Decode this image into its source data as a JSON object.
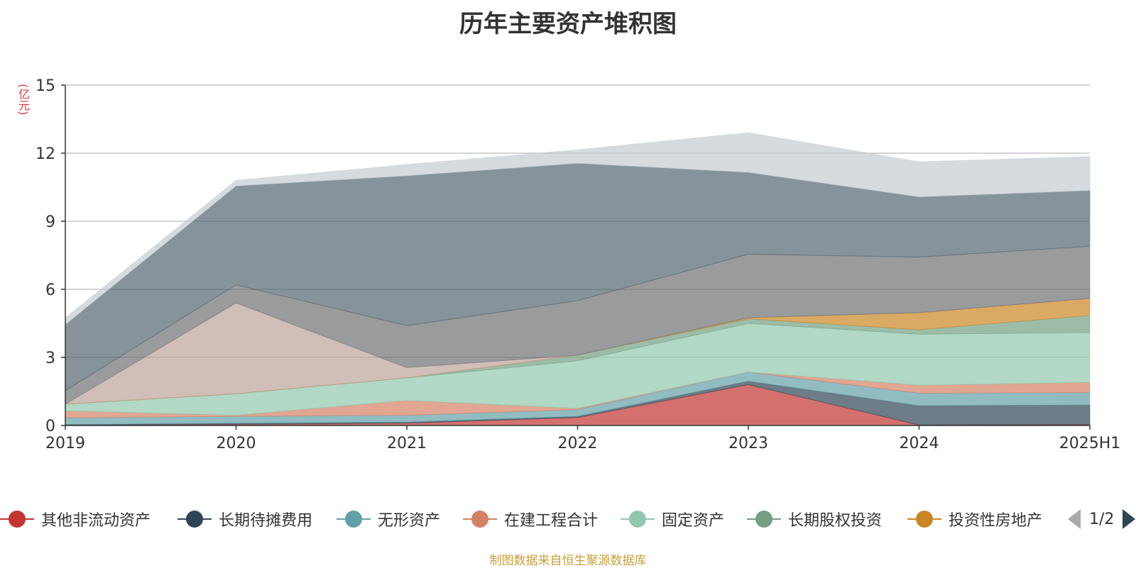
{
  "chart_data": {
    "type": "area",
    "title": "历年主要资产堆积图",
    "unit_label": "(亿元)",
    "categories": [
      "2019",
      "2020",
      "2021",
      "2022",
      "2023",
      "2024",
      "2025H1"
    ],
    "ylim": [
      0,
      15
    ],
    "yticks": [
      0,
      3,
      6,
      9,
      12,
      15
    ],
    "grid": true,
    "stacked": true,
    "legend_position": "bottom",
    "series": [
      {
        "name": "其他非流动资产",
        "color": "#c23531",
        "values": [
          0.02,
          0.05,
          0.1,
          0.35,
          1.8,
          0.02,
          0.05
        ]
      },
      {
        "name": "长期待摊费用",
        "color": "#2f4554",
        "values": [
          0.02,
          0.05,
          0.05,
          0.05,
          0.15,
          0.85,
          0.85
        ]
      },
      {
        "name": "无形资产",
        "color": "#61a0a8",
        "values": [
          0.3,
          0.3,
          0.3,
          0.3,
          0.4,
          0.55,
          0.55
        ]
      },
      {
        "name": "在建工程合计",
        "color": "#d48265",
        "values": [
          0.3,
          0.05,
          0.65,
          0.05,
          0.0,
          0.35,
          0.45
        ]
      },
      {
        "name": "固定资产",
        "color": "#91c7ae",
        "values": [
          0.3,
          0.95,
          1.0,
          2.1,
          2.15,
          2.25,
          2.2
        ]
      },
      {
        "name": "长期股权投资",
        "color": "#749f83",
        "values": [
          0.0,
          0.0,
          0.0,
          0.25,
          0.2,
          0.2,
          0.75
        ]
      },
      {
        "name": "投资性房地产",
        "color": "#ca8622",
        "values": [
          0.0,
          0.0,
          0.0,
          0.0,
          0.05,
          0.75,
          0.75
        ]
      },
      {
        "name": "",
        "color": "#bda29a",
        "values": [
          0.0,
          4.0,
          0.45,
          0.0,
          0.0,
          0.0,
          0.0
        ]
      },
      {
        "name": "",
        "color": "#6e7074",
        "values": [
          0.6,
          0.8,
          1.85,
          2.4,
          2.8,
          2.45,
          2.3
        ]
      },
      {
        "name": "",
        "color": "#546570",
        "values": [
          2.9,
          4.35,
          6.6,
          6.05,
          3.6,
          2.65,
          2.45
        ]
      },
      {
        "name": "",
        "color": "#c4ccd3",
        "values": [
          0.3,
          0.25,
          0.5,
          0.6,
          1.75,
          1.55,
          1.5
        ]
      }
    ],
    "legend_visible": [
      {
        "name": "其他非流动资产",
        "color": "#c23531"
      },
      {
        "name": "长期待摊费用",
        "color": "#2f4554"
      },
      {
        "name": "无形资产",
        "color": "#61a0a8"
      },
      {
        "name": "在建工程合计",
        "color": "#d48265"
      },
      {
        "name": "固定资产",
        "color": "#91c7ae"
      },
      {
        "name": "长期股权投资",
        "color": "#749f83"
      },
      {
        "name": "投资性房地产",
        "color": "#ca8622"
      }
    ]
  },
  "legend_pager": {
    "text": "1/2"
  },
  "source_note": "制图数据来自恒生聚源数据库"
}
